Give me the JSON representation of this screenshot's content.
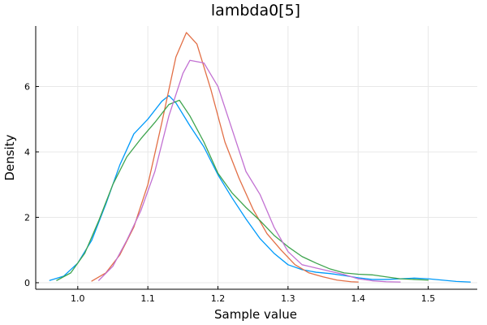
{
  "chart_data": {
    "type": "line",
    "title": "lambda0[5]",
    "xlabel": "Sample value",
    "ylabel": "Density",
    "xlim": [
      0.94,
      1.57
    ],
    "ylim": [
      -0.2,
      7.85
    ],
    "xticks": [
      1.0,
      1.1,
      1.2,
      1.3,
      1.4,
      1.5
    ],
    "xtick_labels": [
      "1.0",
      "1.1",
      "1.2",
      "1.3",
      "1.4",
      "1.5"
    ],
    "yticks": [
      0,
      2,
      4,
      6
    ],
    "ytick_labels": [
      "0",
      "2",
      "4",
      "6"
    ],
    "grid": true,
    "legend": "none",
    "series": [
      {
        "color": "#009AFA",
        "points": [
          [
            0.96,
            0.07
          ],
          [
            0.98,
            0.2
          ],
          [
            1.0,
            0.6
          ],
          [
            1.02,
            1.3
          ],
          [
            1.04,
            2.4
          ],
          [
            1.06,
            3.6
          ],
          [
            1.08,
            4.55
          ],
          [
            1.1,
            5.0
          ],
          [
            1.12,
            5.55
          ],
          [
            1.13,
            5.72
          ],
          [
            1.14,
            5.5
          ],
          [
            1.16,
            4.8
          ],
          [
            1.18,
            4.15
          ],
          [
            1.2,
            3.3
          ],
          [
            1.22,
            2.6
          ],
          [
            1.24,
            1.95
          ],
          [
            1.26,
            1.35
          ],
          [
            1.28,
            0.9
          ],
          [
            1.3,
            0.55
          ],
          [
            1.32,
            0.4
          ],
          [
            1.34,
            0.32
          ],
          [
            1.36,
            0.28
          ],
          [
            1.38,
            0.22
          ],
          [
            1.4,
            0.15
          ],
          [
            1.42,
            0.1
          ],
          [
            1.44,
            0.1
          ],
          [
            1.46,
            0.12
          ],
          [
            1.48,
            0.14
          ],
          [
            1.5,
            0.12
          ],
          [
            1.52,
            0.08
          ],
          [
            1.54,
            0.04
          ],
          [
            1.56,
            0.02
          ]
        ]
      },
      {
        "color": "#E26F46",
        "points": [
          [
            1.02,
            0.05
          ],
          [
            1.04,
            0.3
          ],
          [
            1.06,
            0.85
          ],
          [
            1.08,
            1.7
          ],
          [
            1.1,
            3.0
          ],
          [
            1.12,
            4.9
          ],
          [
            1.14,
            6.9
          ],
          [
            1.155,
            7.65
          ],
          [
            1.17,
            7.3
          ],
          [
            1.19,
            5.9
          ],
          [
            1.21,
            4.3
          ],
          [
            1.23,
            3.2
          ],
          [
            1.25,
            2.25
          ],
          [
            1.27,
            1.5
          ],
          [
            1.29,
            1.0
          ],
          [
            1.31,
            0.55
          ],
          [
            1.33,
            0.3
          ],
          [
            1.35,
            0.18
          ],
          [
            1.37,
            0.08
          ],
          [
            1.39,
            0.03
          ],
          [
            1.4,
            0.02
          ]
        ]
      },
      {
        "color": "#3EA44E",
        "points": [
          [
            0.97,
            0.07
          ],
          [
            0.99,
            0.3
          ],
          [
            1.01,
            0.9
          ],
          [
            1.03,
            1.9
          ],
          [
            1.05,
            3.0
          ],
          [
            1.07,
            3.85
          ],
          [
            1.09,
            4.4
          ],
          [
            1.11,
            4.9
          ],
          [
            1.13,
            5.45
          ],
          [
            1.145,
            5.58
          ],
          [
            1.16,
            5.1
          ],
          [
            1.18,
            4.3
          ],
          [
            1.2,
            3.35
          ],
          [
            1.22,
            2.75
          ],
          [
            1.24,
            2.3
          ],
          [
            1.26,
            1.9
          ],
          [
            1.28,
            1.45
          ],
          [
            1.3,
            1.1
          ],
          [
            1.32,
            0.8
          ],
          [
            1.34,
            0.6
          ],
          [
            1.36,
            0.42
          ],
          [
            1.38,
            0.3
          ],
          [
            1.4,
            0.26
          ],
          [
            1.42,
            0.24
          ],
          [
            1.44,
            0.18
          ],
          [
            1.46,
            0.12
          ],
          [
            1.48,
            0.1
          ],
          [
            1.5,
            0.08
          ],
          [
            1.5,
            0.08
          ]
        ]
      },
      {
        "color": "#C271D2",
        "points": [
          [
            1.03,
            0.07
          ],
          [
            1.05,
            0.5
          ],
          [
            1.07,
            1.3
          ],
          [
            1.09,
            2.2
          ],
          [
            1.11,
            3.4
          ],
          [
            1.13,
            5.1
          ],
          [
            1.15,
            6.4
          ],
          [
            1.16,
            6.8
          ],
          [
            1.18,
            6.72
          ],
          [
            1.2,
            6.0
          ],
          [
            1.22,
            4.7
          ],
          [
            1.24,
            3.4
          ],
          [
            1.26,
            2.7
          ],
          [
            1.28,
            1.7
          ],
          [
            1.3,
            0.95
          ],
          [
            1.32,
            0.55
          ],
          [
            1.34,
            0.45
          ],
          [
            1.36,
            0.35
          ],
          [
            1.38,
            0.25
          ],
          [
            1.4,
            0.12
          ],
          [
            1.42,
            0.06
          ],
          [
            1.44,
            0.03
          ],
          [
            1.46,
            0.02
          ]
        ]
      }
    ]
  }
}
